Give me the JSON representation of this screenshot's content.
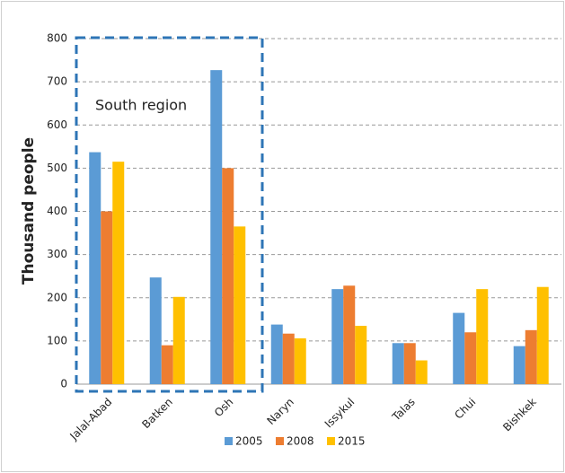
{
  "chart_data": {
    "type": "bar",
    "y_label": "Thousand people",
    "annotation": "South region",
    "categories": [
      "Jalal-Abad",
      "Batken",
      "Osh",
      "Naryn",
      "Issykul",
      "Talas",
      "Chui",
      "Bishkek"
    ],
    "series": [
      {
        "name": "2005",
        "color": "#5b9bd5",
        "values": [
          537,
          247,
          727,
          138,
          220,
          95,
          165,
          88
        ]
      },
      {
        "name": "2008",
        "color": "#ed7d31",
        "values": [
          400,
          90,
          500,
          117,
          228,
          95,
          120,
          125
        ]
      },
      {
        "name": "2015",
        "color": "#ffc000",
        "values": [
          515,
          202,
          365,
          106,
          135,
          55,
          220,
          225
        ]
      }
    ],
    "ylim": [
      0,
      800
    ],
    "yticks": [
      0,
      100,
      200,
      300,
      400,
      500,
      600,
      700,
      800
    ],
    "grid": true
  }
}
